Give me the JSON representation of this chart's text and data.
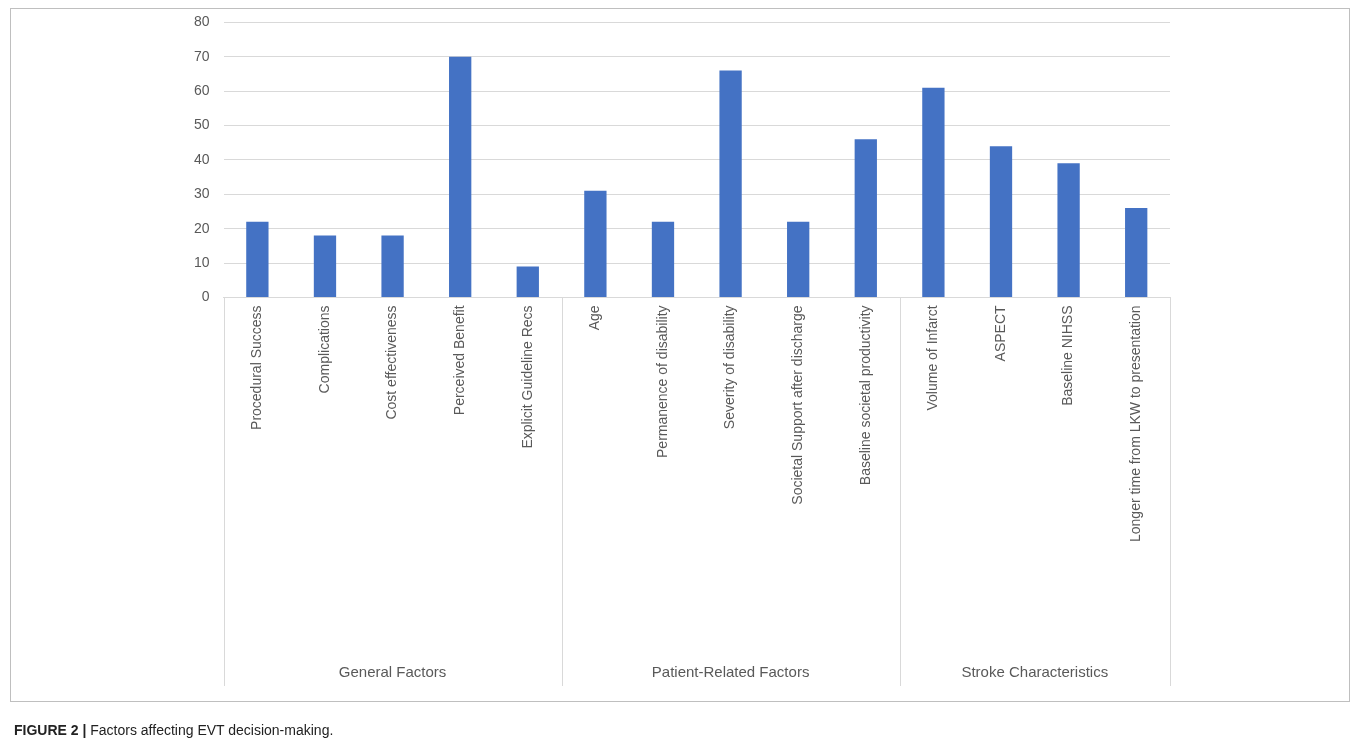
{
  "chart_data": {
    "type": "bar",
    "title": "FIGURE 2 | Factors affecting EVT decision-making.",
    "categories": [
      "Procedural Success",
      "Complications",
      "Cost effectiveness",
      "Perceived Benefit",
      "Explicit Guideline Recs",
      "Age",
      "Permanence of disability",
      "Severity of disability",
      "Societal Support after discharge",
      "Baseline societal productivity",
      "Volume of Infarct",
      "ASPECT",
      "Baseline NIHSS",
      "Longer time from LKW to presentation"
    ],
    "values": [
      22,
      18,
      18,
      70,
      9,
      31,
      22,
      66,
      22,
      46,
      61,
      44,
      39,
      26
    ],
    "color": "#4472c4",
    "ylim": [
      0,
      80
    ],
    "yticks": [
      0,
      10,
      20,
      30,
      40,
      50,
      60,
      70,
      80
    ],
    "grid": "y",
    "annotations": [
      "General Factors",
      "Patient-Related Factors",
      "Stroke Characteristics"
    ]
  }
}
